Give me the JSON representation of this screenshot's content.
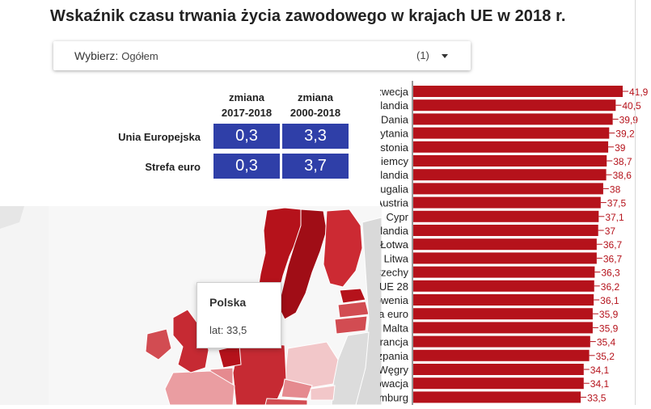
{
  "title": "Wskaźnik czasu trwania życia zawodowego w krajach UE w 2018 r.",
  "filter": {
    "label": "Wybierz:",
    "value": "Ogółem",
    "count": "(1)"
  },
  "summary_table": {
    "columns": [
      "zmiana\n2017-2018",
      "zmiana\n2000-2018"
    ],
    "col1_line1": "zmiana",
    "col1_line2": "2017-2018",
    "col2_line1": "zmiana",
    "col2_line2": "2000-2018",
    "rows": [
      {
        "label": "Unia Europejska",
        "v1": "0,3",
        "v2": "3,3"
      },
      {
        "label": "Strefa euro",
        "v1": "0,3",
        "v2": "3,7"
      }
    ],
    "cell_color": "#2f3fa8"
  },
  "map_tooltip": {
    "country": "Polska",
    "value_text": "lat: 33,5"
  },
  "chart_data": {
    "type": "bar",
    "orientation": "horizontal",
    "bar_color": "#b5121b",
    "categories": [
      "Szwecja",
      "Holandia",
      "Dania",
      "Wielka Brytania",
      "Estonia",
      "Niemcy",
      "Finlandia",
      "Portugalia",
      "Austria",
      "Cypr",
      "Irlandia",
      "Łotwa",
      "Litwa",
      "Czechy",
      "UE 28",
      "Słowenia",
      "Strefa euro",
      "Malta",
      "Francja",
      "Hiszpania",
      "Węgry",
      "Słowacja",
      "Luksemburg"
    ],
    "values": [
      41.9,
      40.5,
      39.9,
      39.2,
      39,
      38.7,
      38.6,
      38,
      37.5,
      37.1,
      37,
      36.7,
      36.7,
      36.3,
      36.2,
      36.1,
      35.9,
      35.9,
      35.4,
      35.2,
      34.1,
      34.1,
      33.5
    ],
    "value_labels": [
      "41,9",
      "40,5",
      "39,9",
      "39,2",
      "39",
      "38,7",
      "38,6",
      "38",
      "37,5",
      "37,1",
      "37",
      "36,7",
      "36,7",
      "36,3",
      "36,2",
      "36,1",
      "35,9",
      "35,9",
      "35,4",
      "35,2",
      "34,1",
      "34,1",
      "33,5"
    ],
    "xlim": [
      0,
      41.9
    ],
    "grid": false
  }
}
